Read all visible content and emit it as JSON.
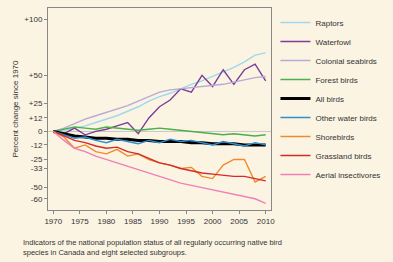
{
  "chart_data": {
    "type": "line",
    "y_label": "Percent change since 1970",
    "caption_lines": [
      "Indicators of the national population status of all regularly occurring native bird",
      "species in Canada and eight selected subgroups."
    ],
    "x": [
      1970,
      1972,
      1974,
      1976,
      1978,
      1980,
      1982,
      1984,
      1986,
      1988,
      1990,
      1992,
      1994,
      1996,
      1998,
      2000,
      2002,
      2004,
      2006,
      2008,
      2010
    ],
    "xlim": [
      1969,
      2011
    ],
    "xticks": [
      1970,
      1975,
      1980,
      1985,
      1990,
      1995,
      2000,
      2005,
      2010
    ],
    "ylim": [
      -70,
      110
    ],
    "yticks": [
      {
        "value": 100,
        "label": "+100"
      },
      {
        "value": 50,
        "label": "+50"
      },
      {
        "value": 25,
        "label": "+25"
      },
      {
        "value": 12,
        "label": "+12"
      },
      0,
      -12,
      -25,
      -33,
      -50,
      -60
    ],
    "grid": false,
    "legend": "right",
    "series": [
      {
        "name": "Raptors",
        "color": "#9fd8ee",
        "values": [
          0,
          1,
          3,
          5,
          8,
          11,
          14,
          18,
          22,
          27,
          31,
          34,
          38,
          42,
          45,
          49,
          53,
          57,
          62,
          68,
          70
        ]
      },
      {
        "name": "Waterfowl",
        "color": "#7b3f98",
        "values": [
          0,
          -2,
          3,
          -3,
          0,
          2,
          5,
          8,
          -2,
          12,
          22,
          28,
          38,
          35,
          50,
          40,
          55,
          42,
          55,
          60,
          45
        ]
      },
      {
        "name": "Colonial seabirds",
        "color": "#b8aad8",
        "values": [
          0,
          3,
          7,
          11,
          14,
          17,
          20,
          23,
          27,
          31,
          35,
          37,
          38,
          39,
          40,
          41,
          42,
          44,
          46,
          48,
          49
        ]
      },
      {
        "name": "Forest birds",
        "color": "#4cae4c",
        "values": [
          0,
          2,
          4,
          3,
          2,
          4,
          3,
          2,
          1,
          2,
          3,
          2,
          1,
          0,
          -1,
          -2,
          -3,
          -2,
          -3,
          -4,
          -3
        ]
      },
      {
        "name": "All birds",
        "color": "#000000",
        "line_style": "thick",
        "values": [
          0,
          -2,
          -4,
          -5,
          -6,
          -6,
          -7,
          -7,
          -8,
          -8,
          -9,
          -9,
          -9,
          -10,
          -10,
          -11,
          -11,
          -11,
          -12,
          -12,
          -12
        ]
      },
      {
        "name": "Other water birds",
        "color": "#2f8fd0",
        "values": [
          0,
          -3,
          -6,
          -5,
          -8,
          -10,
          -7,
          -9,
          -11,
          -8,
          -10,
          -7,
          -9,
          -8,
          -10,
          -12,
          -9,
          -11,
          -13,
          -10,
          -12
        ]
      },
      {
        "name": "Shorebirds",
        "color": "#f08a2a",
        "values": [
          0,
          -5,
          -15,
          -12,
          -18,
          -20,
          -16,
          -22,
          -20,
          -25,
          -28,
          -30,
          -33,
          -32,
          -40,
          -42,
          -30,
          -25,
          -25,
          -45,
          -40
        ]
      },
      {
        "name": "Grassland birds",
        "color": "#d42a2a",
        "values": [
          0,
          -4,
          -8,
          -10,
          -13,
          -15,
          -14,
          -18,
          -20,
          -24,
          -28,
          -30,
          -33,
          -35,
          -37,
          -38,
          -39,
          -40,
          -40,
          -42,
          -44
        ]
      },
      {
        "name": "Aerial insectivores",
        "color": "#f07fb5",
        "values": [
          0,
          -8,
          -15,
          -18,
          -22,
          -25,
          -28,
          -31,
          -34,
          -37,
          -40,
          -43,
          -46,
          -48,
          -50,
          -52,
          -54,
          -56,
          -58,
          -60,
          -64
        ]
      }
    ]
  }
}
